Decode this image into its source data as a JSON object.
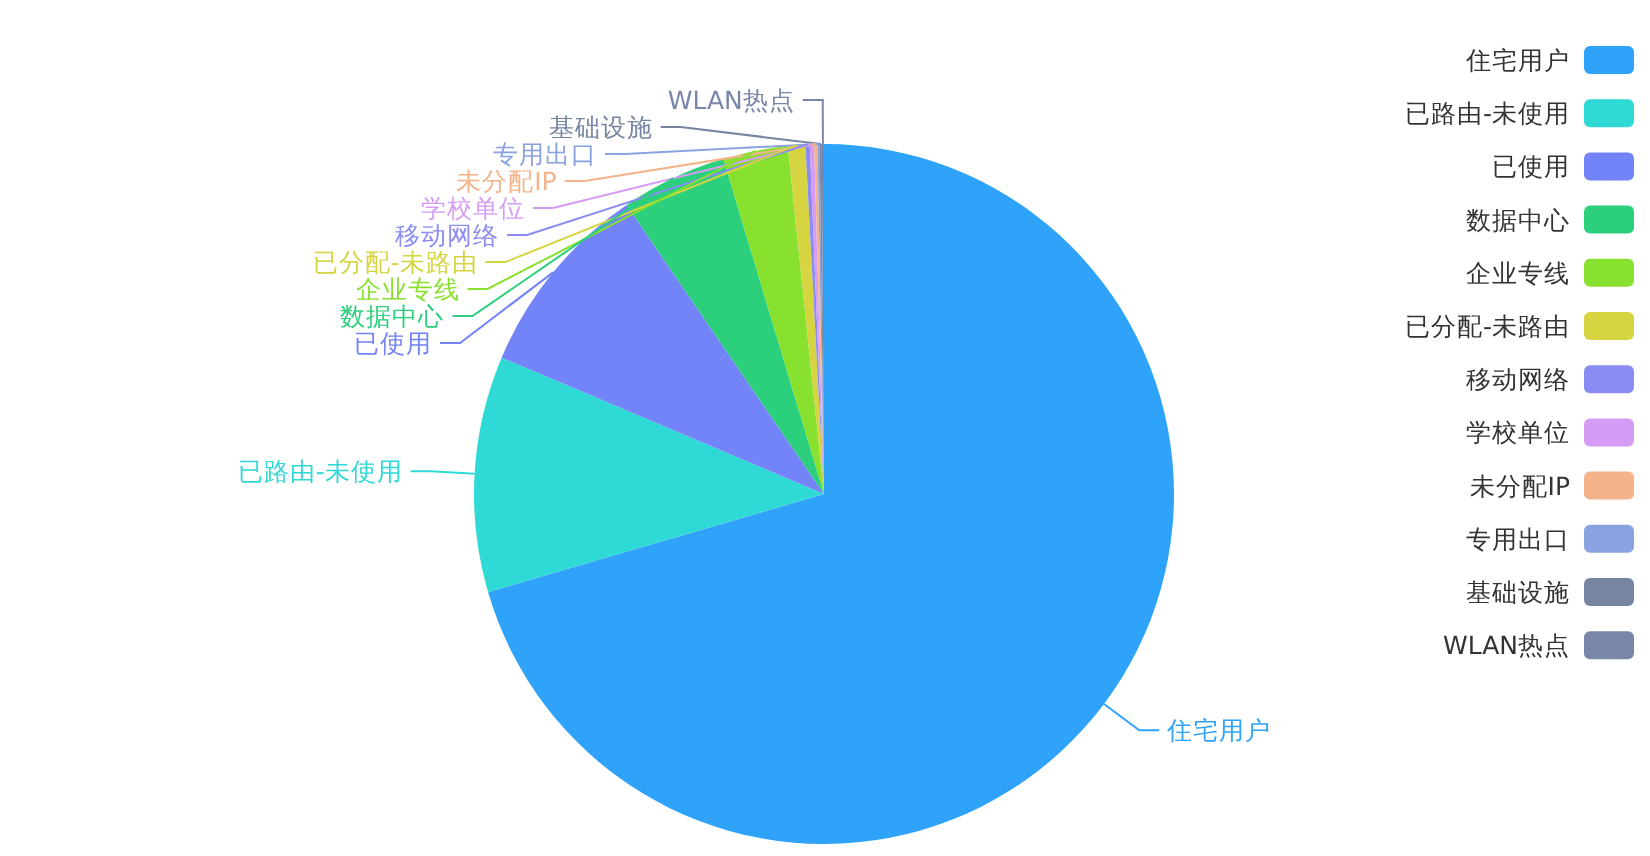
{
  "chart_data": {
    "type": "pie",
    "categories": [
      "住宅用户",
      "已路由-未使用",
      "已使用",
      "数据中心",
      "企业专线",
      "已分配-未路由",
      "移动网络",
      "学校单位",
      "未分配IP",
      "专用出口",
      "基础设施",
      "WLAN热点"
    ],
    "values": [
      70.55,
      10.9,
      9.1,
      4.9,
      3.0,
      0.8,
      0.2,
      0.2,
      0.15,
      0.1,
      0.1,
      0.1
    ],
    "colors": [
      "#2fa3f9",
      "#2fd9d6",
      "#7383f8",
      "#2ccf7c",
      "#88e02f",
      "#d6d440",
      "#8a8cf4",
      "#d69cf5",
      "#f4b38a",
      "#8aa3e0",
      "#7585a2",
      "#7a86a8"
    ],
    "legend": "right"
  }
}
